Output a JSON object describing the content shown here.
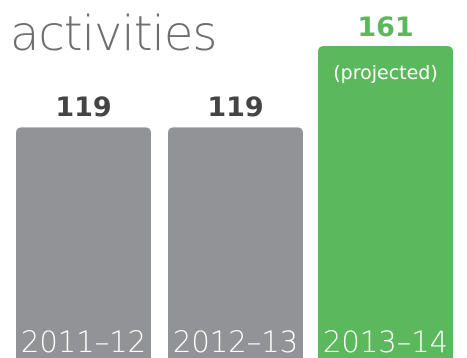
{
  "chart_data": {
    "type": "bar",
    "title": "activities",
    "categories": [
      "2011–12",
      "2012–13",
      "2013–14"
    ],
    "values": [
      119,
      119,
      161
    ],
    "annotations": [
      "",
      "",
      "(projected)"
    ],
    "bar_colors": [
      "#929396",
      "#929396",
      "#5cb85c"
    ],
    "value_label_colors": [
      "#444444",
      "#444444",
      "#5cb85c"
    ],
    "ylim": [
      0,
      161
    ],
    "grid": false,
    "legend": "none"
  }
}
